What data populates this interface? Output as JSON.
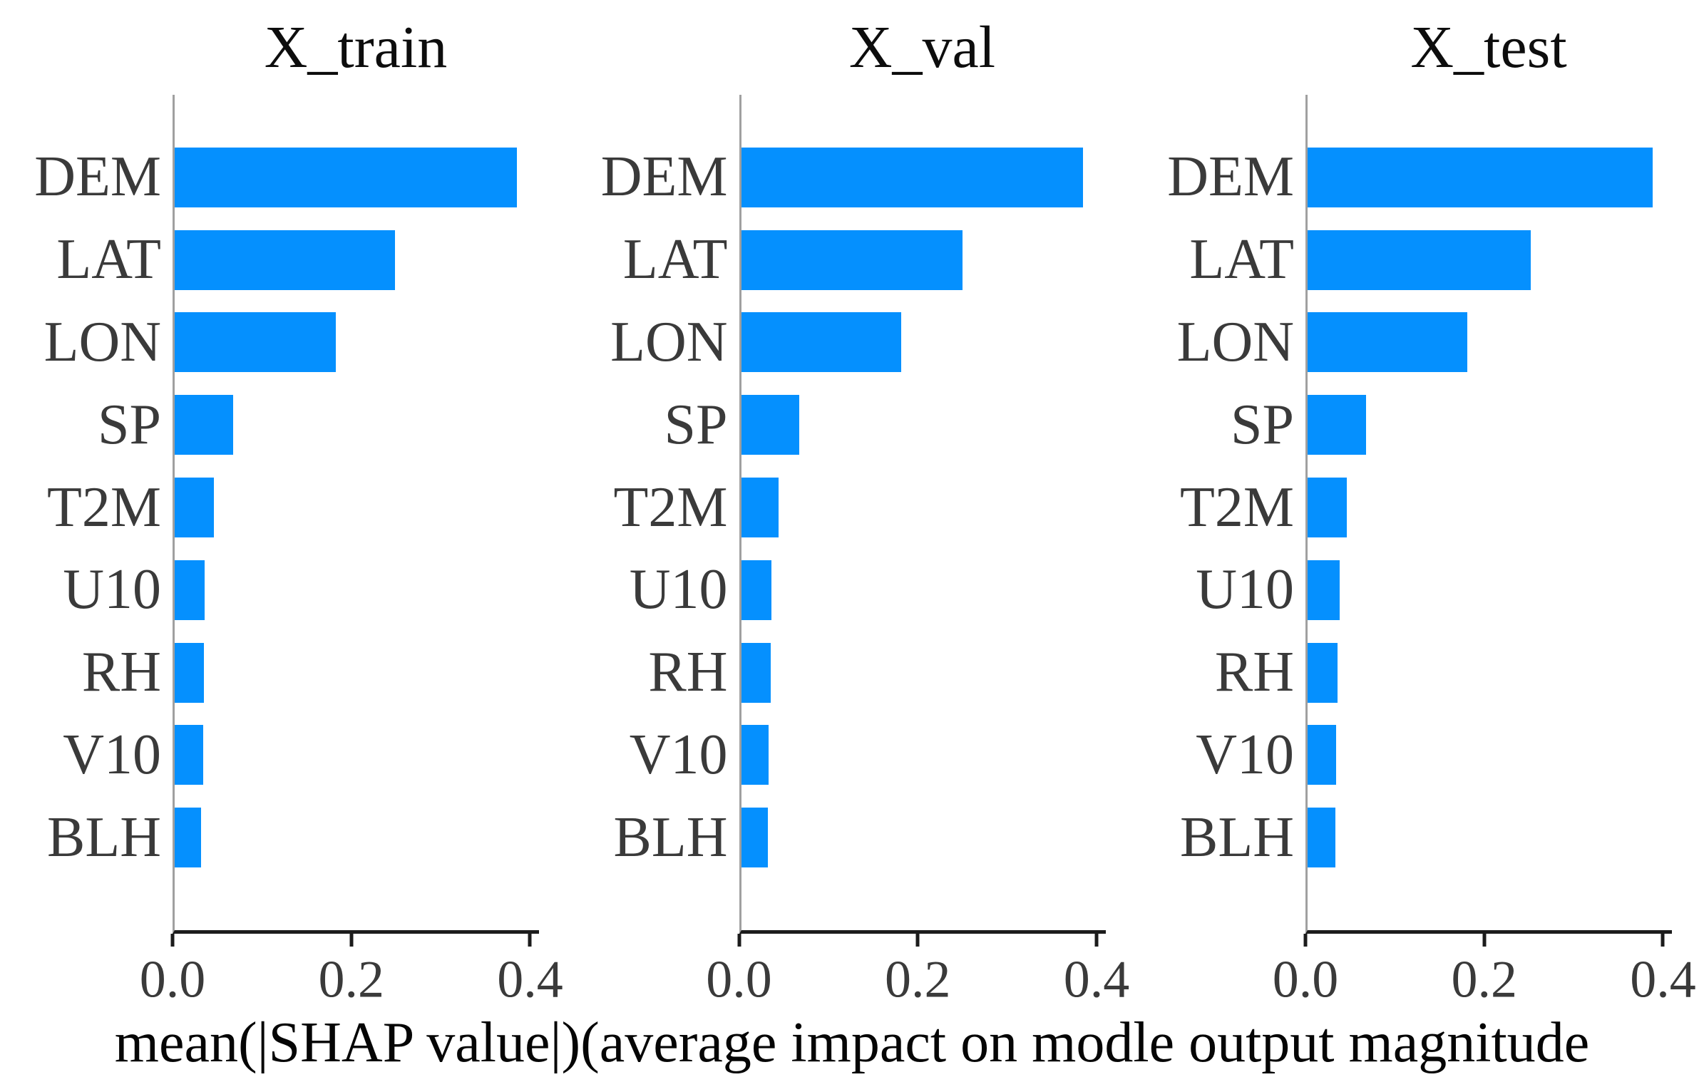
{
  "figure": {
    "background": "#ffffff"
  },
  "chart_data": {
    "type": "bar",
    "orientation": "horizontal",
    "panels": 3,
    "categories": [
      "DEM",
      "LAT",
      "LON",
      "SP",
      "T2M",
      "U10",
      "RH",
      "V10",
      "BLH"
    ],
    "series": [
      {
        "name": "X_train",
        "values": [
          0.385,
          0.248,
          0.181,
          0.066,
          0.044,
          0.034,
          0.033,
          0.032,
          0.03
        ]
      },
      {
        "name": "X_val",
        "values": [
          0.385,
          0.249,
          0.18,
          0.065,
          0.042,
          0.034,
          0.033,
          0.031,
          0.03
        ]
      },
      {
        "name": "X_test",
        "values": [
          0.388,
          0.251,
          0.18,
          0.066,
          0.044,
          0.036,
          0.034,
          0.032,
          0.031
        ]
      }
    ],
    "xlabel": "mean(|SHAP value|)(average impact on modle output magnitude",
    "xticks": {
      "labels": [
        "0.0",
        "0.2",
        "0.4"
      ],
      "values": [
        0.0,
        0.2,
        0.4
      ]
    },
    "xlim": [
      0,
      0.41
    ],
    "grid": false,
    "legend": null,
    "bar_color": "#0590fe",
    "axis_color": "#1c1c1c",
    "spine_color": "#a0a0a0",
    "label_color": "#3a3a3a",
    "title_color": "#0d0d0d"
  }
}
